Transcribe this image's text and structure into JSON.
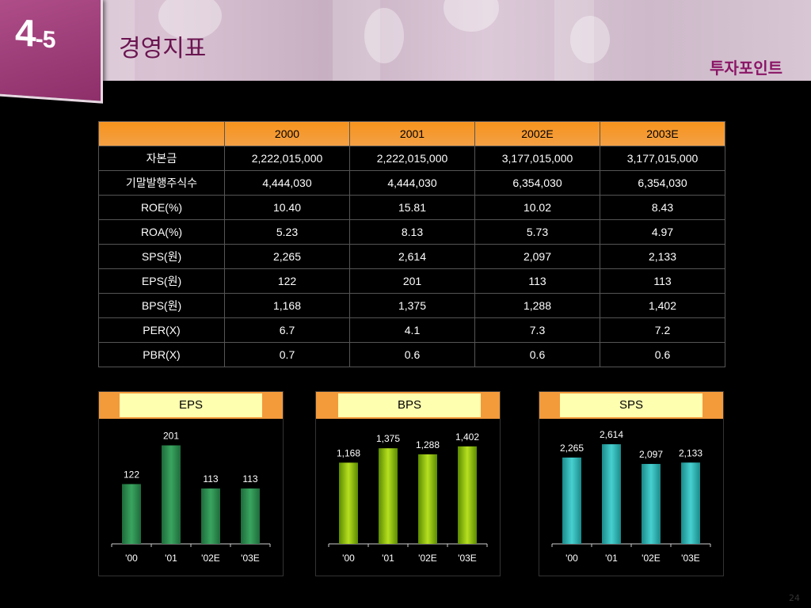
{
  "header": {
    "section_major": "4",
    "section_minor": "-5",
    "title": "경영지표",
    "subtitle": "투자포인트"
  },
  "table": {
    "columns": [
      "2000",
      "2001",
      "2002E",
      "2003E"
    ],
    "rows": [
      {
        "label": "자본금",
        "values": [
          "2,222,015,000",
          "2,222,015,000",
          "3,177,015,000",
          "3,177,015,000"
        ]
      },
      {
        "label": "기말발행주식수",
        "values": [
          "4,444,030",
          "4,444,030",
          "6,354,030",
          "6,354,030"
        ]
      },
      {
        "label": "ROE(%)",
        "values": [
          "10.40",
          "15.81",
          "10.02",
          "8.43"
        ]
      },
      {
        "label": "ROA(%)",
        "values": [
          "5.23",
          "8.13",
          "5.73",
          "4.97"
        ]
      },
      {
        "label": "SPS(원)",
        "values": [
          "2,265",
          "2,614",
          "2,097",
          "2,133"
        ]
      },
      {
        "label": "EPS(원)",
        "values": [
          "122",
          "201",
          "113",
          "113"
        ]
      },
      {
        "label": "BPS(원)",
        "values": [
          "1,168",
          "1,375",
          "1,288",
          "1,402"
        ]
      },
      {
        "label": "PER(X)",
        "values": [
          "6.7",
          "4.1",
          "7.3",
          "7.2"
        ]
      },
      {
        "label": "PBR(X)",
        "values": [
          "0.7",
          "0.6",
          "0.6",
          "0.6"
        ]
      }
    ]
  },
  "chart_data": [
    {
      "type": "bar",
      "title": "EPS",
      "categories": [
        "'00",
        "'01",
        "'02E",
        "'03E"
      ],
      "values": [
        122,
        201,
        113,
        113
      ],
      "value_labels": [
        "122",
        "201",
        "113",
        "113"
      ],
      "ylim": [
        0,
        210
      ],
      "color_dark": "#1d6b3a",
      "color_light": "#3aa560",
      "grid": false
    },
    {
      "type": "bar",
      "title": "BPS",
      "categories": [
        "'00",
        "'01",
        "'02E",
        "'03E"
      ],
      "values": [
        1168,
        1375,
        1288,
        1402
      ],
      "value_labels": [
        "1,168",
        "1,375",
        "1,288",
        "1,402"
      ],
      "ylim": [
        0,
        1480
      ],
      "color_dark": "#5a8a00",
      "color_light": "#b6e020",
      "grid": false
    },
    {
      "type": "bar",
      "title": "SPS",
      "categories": [
        "'00",
        "'01",
        "'02E",
        "'03E"
      ],
      "values": [
        2265,
        2614,
        2097,
        2133
      ],
      "value_labels": [
        "2,265",
        "2,614",
        "2,097",
        "2,133"
      ],
      "ylim": [
        0,
        2700
      ],
      "color_dark": "#1a8a8a",
      "color_light": "#48d0d0",
      "grid": false
    }
  ],
  "footer": {
    "page_number": "24"
  }
}
